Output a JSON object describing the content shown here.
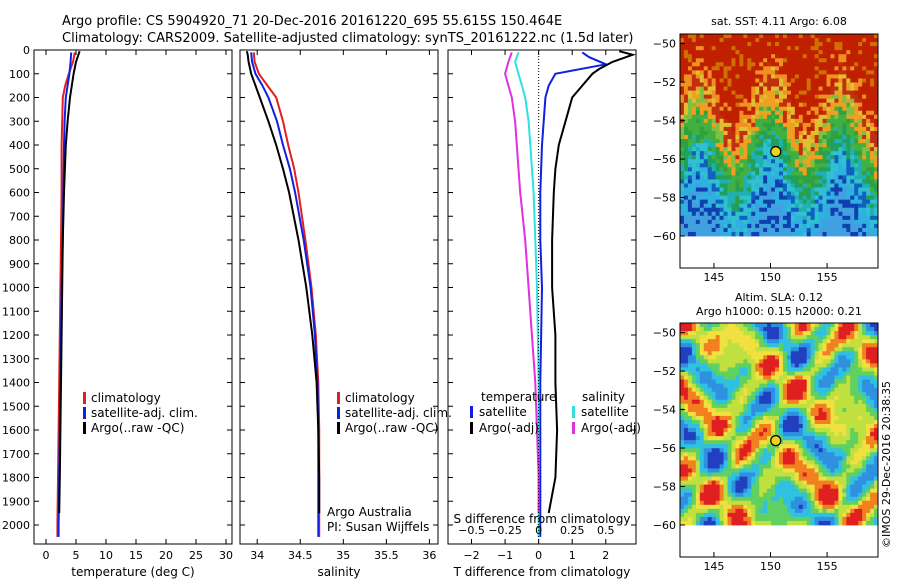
{
  "header": {
    "line1": "Argo profile: CS 5904920_71 20-Dec-2016 20161220_695 55.615S 150.464E",
    "line2": "Climatology: CARS2009. Satellite-adjusted climatology: synTS_20161222.nc (1.5d later)"
  },
  "credit": "©IMOS 29-Dec-2016 20:38:35",
  "colors": {
    "climatology": "#e02020",
    "satellite": "#1020e0",
    "argo": "#000000",
    "salinity_satellite": "#30e0e0",
    "salinity_argo": "#e030e0"
  },
  "chart_data": [
    {
      "type": "line",
      "id": "temperature",
      "xlabel": "temperature (deg C)",
      "ylabel": "",
      "xlim": [
        -2,
        31
      ],
      "ylim": [
        2080,
        0
      ],
      "xticks": [
        0,
        5,
        10,
        15,
        20,
        25,
        30
      ],
      "xtick_labels": [
        "0",
        "5",
        "10",
        "15",
        "20",
        "25",
        "30"
      ],
      "yticks": [
        0,
        100,
        200,
        300,
        400,
        500,
        600,
        700,
        800,
        900,
        1000,
        1100,
        1200,
        1300,
        1400,
        1500,
        1600,
        1700,
        1800,
        1900,
        2000
      ],
      "ytick_labels": [
        "0",
        "100",
        "200",
        "300",
        "400",
        "500",
        "600",
        "700",
        "800",
        "900",
        "1000",
        "1100",
        "1200",
        "1300",
        "1400",
        "1500",
        "1600",
        "1700",
        "1800",
        "1900",
        "2000"
      ],
      "legend": [
        "climatology",
        "satellite-adj. clim.",
        "Argo(..raw -QC)"
      ],
      "series": [
        {
          "name": "climatology",
          "color": "climatology",
          "depth": [
            10,
            50,
            100,
            150,
            200,
            300,
            400,
            600,
            800,
            1000,
            1200,
            1400,
            1600,
            1800,
            2000,
            2050
          ],
          "values": [
            4.8,
            4.5,
            3.8,
            3.2,
            2.8,
            2.7,
            2.6,
            2.6,
            2.5,
            2.4,
            2.3,
            2.2,
            2.1,
            2.0,
            1.9,
            1.9
          ]
        },
        {
          "name": "satellite-adj. clim.",
          "color": "satellite",
          "depth": [
            10,
            50,
            100,
            150,
            200,
            300,
            400,
            600,
            800,
            1000,
            1200,
            1400,
            1600,
            1800,
            2000,
            2050
          ],
          "values": [
            4.2,
            4.1,
            3.9,
            3.6,
            3.3,
            3.1,
            3.0,
            2.9,
            2.8,
            2.6,
            2.5,
            2.4,
            2.3,
            2.2,
            2.1,
            2.1
          ]
        },
        {
          "name": "Argo(..raw -QC)",
          "color": "argo",
          "depth": [
            5,
            20,
            50,
            100,
            150,
            200,
            300,
            400,
            600,
            800,
            1000,
            1200,
            1400,
            1600,
            1800,
            1950
          ],
          "values": [
            5.6,
            5.4,
            5.0,
            4.6,
            4.3,
            4.0,
            3.6,
            3.3,
            3.0,
            2.8,
            2.7,
            2.6,
            2.5,
            2.4,
            2.3,
            2.2
          ]
        }
      ]
    },
    {
      "type": "line",
      "id": "salinity",
      "xlabel": "salinity",
      "ylabel": "",
      "xlim": [
        33.8,
        36.1
      ],
      "ylim": [
        2080,
        0
      ],
      "xticks": [
        34,
        34.5,
        35,
        35.5,
        36
      ],
      "xtick_labels": [
        "34",
        "34.5",
        "35",
        "35.5",
        "36"
      ],
      "legend": [
        "climatology",
        "satellite-adj. clim.",
        "Argo(..raw -QC)"
      ],
      "annotation": [
        "Argo Australia",
        "PI: Susan Wijffels"
      ],
      "series": [
        {
          "name": "climatology",
          "color": "climatology",
          "depth": [
            10,
            50,
            100,
            150,
            200,
            300,
            400,
            500,
            600,
            800,
            1000,
            1200,
            1400,
            1600,
            1800,
            2050
          ],
          "values": [
            33.96,
            33.97,
            34.02,
            34.12,
            34.22,
            34.3,
            34.36,
            34.43,
            34.48,
            34.56,
            34.63,
            34.68,
            34.71,
            34.72,
            34.72,
            34.72
          ]
        },
        {
          "name": "satellite-adj. clim.",
          "color": "satellite",
          "depth": [
            10,
            50,
            100,
            150,
            200,
            300,
            400,
            500,
            600,
            800,
            1000,
            1200,
            1400,
            1600,
            1800,
            2050
          ],
          "values": [
            33.93,
            33.94,
            33.98,
            34.06,
            34.13,
            34.23,
            34.3,
            34.38,
            34.44,
            34.54,
            34.62,
            34.67,
            34.7,
            34.71,
            34.71,
            34.71
          ]
        },
        {
          "name": "Argo(..raw -QC)",
          "color": "argo",
          "depth": [
            5,
            20,
            50,
            100,
            150,
            200,
            300,
            400,
            500,
            600,
            800,
            1000,
            1200,
            1400,
            1600,
            1800,
            1950
          ],
          "values": [
            33.88,
            33.89,
            33.9,
            33.93,
            33.98,
            34.03,
            34.13,
            34.22,
            34.3,
            34.37,
            34.48,
            34.57,
            34.64,
            34.69,
            34.71,
            34.72,
            34.72
          ]
        }
      ]
    },
    {
      "type": "line",
      "id": "difference",
      "xlabel": "T difference from climatology",
      "x2label": "S difference from climatology",
      "ylabel": "",
      "xlim": [
        -2.7,
        2.9
      ],
      "ylim": [
        2080,
        0
      ],
      "xticks": [
        -2,
        -1,
        0,
        1,
        2
      ],
      "xtick_labels": [
        "−2",
        "−1",
        "0",
        "1",
        "2"
      ],
      "x2ticks": [
        -2,
        -1,
        0,
        1,
        2
      ],
      "x2tick_labels": [
        "−0.5",
        "−0.25",
        "0",
        "0.25",
        "0.5"
      ],
      "legend_temperature_title": "temperature",
      "legend_salinity_title": "salinity",
      "legend": [
        "satellite",
        "Argo(-adj)",
        "satellite",
        "Argo(-adj)"
      ],
      "series": [
        {
          "name": "satellite",
          "group": "temperature",
          "color": "satellite",
          "depth": [
            10,
            30,
            60,
            100,
            150,
            200,
            300,
            400,
            600,
            800,
            1000,
            1400,
            1800,
            2050
          ],
          "values": [
            1.3,
            1.5,
            2.0,
            0.5,
            0.3,
            0.2,
            0.15,
            0.1,
            0.05,
            0.05,
            0.1,
            0.05,
            0.05,
            0.05
          ]
        },
        {
          "name": "Argo(-adj)",
          "group": "temperature",
          "color": "argo",
          "depth": [
            5,
            20,
            50,
            80,
            100,
            150,
            200,
            300,
            400,
            500,
            600,
            800,
            1000,
            1200,
            1400,
            1600,
            1800,
            1950
          ],
          "values": [
            2.4,
            2.8,
            2.2,
            1.8,
            1.6,
            1.3,
            1.0,
            0.8,
            0.6,
            0.5,
            0.45,
            0.4,
            0.4,
            0.5,
            0.5,
            0.55,
            0.5,
            0.3
          ]
        },
        {
          "name": "satellite",
          "group": "salinity",
          "color": "salinity_satellite",
          "depth": [
            10,
            50,
            100,
            150,
            200,
            300,
            400,
            600,
            800,
            1000,
            1400,
            1800,
            2050
          ],
          "values": [
            -0.6,
            -0.7,
            -0.6,
            -0.5,
            -0.4,
            -0.3,
            -0.25,
            -0.15,
            -0.1,
            -0.05,
            0.0,
            0.0,
            0.0
          ]
        },
        {
          "name": "Argo(-adj)",
          "group": "salinity",
          "color": "salinity_argo",
          "depth": [
            10,
            50,
            100,
            150,
            200,
            300,
            400,
            600,
            800,
            1000,
            1200,
            1400,
            1600,
            1800,
            1950
          ],
          "values": [
            -0.8,
            -0.9,
            -1.0,
            -0.9,
            -0.8,
            -0.7,
            -0.65,
            -0.55,
            -0.4,
            -0.3,
            -0.2,
            -0.1,
            -0.05,
            0.0,
            0.0
          ]
        }
      ]
    },
    {
      "type": "heatmap",
      "id": "sst-map",
      "title": "sat. SST: 4.11  Argo: 6.08",
      "xlim": [
        142,
        159.5
      ],
      "ylim": [
        -60,
        -49.5
      ],
      "xticks": [
        145,
        150,
        155
      ],
      "yticks": [
        -50,
        -52,
        -54,
        -56,
        -58,
        -60
      ],
      "ytick_labels": [
        "−50",
        "−52",
        "−54",
        "−56",
        "−58",
        "−60"
      ],
      "marker": {
        "lon": 150.464,
        "lat": -55.615
      }
    },
    {
      "type": "heatmap",
      "id": "sla-map",
      "title": "Altim. SLA: 0.12",
      "subtitle": "Argo h1000: 0.15 h2000: 0.21",
      "xlim": [
        142,
        159.5
      ],
      "ylim": [
        -60,
        -49.5
      ],
      "xticks": [
        145,
        150,
        155
      ],
      "yticks": [
        -50,
        -52,
        -54,
        -56,
        -58,
        -60
      ],
      "ytick_labels": [
        "−50",
        "−52",
        "−54",
        "−56",
        "−58",
        "−60"
      ],
      "marker": {
        "lon": 150.464,
        "lat": -55.615
      }
    }
  ]
}
